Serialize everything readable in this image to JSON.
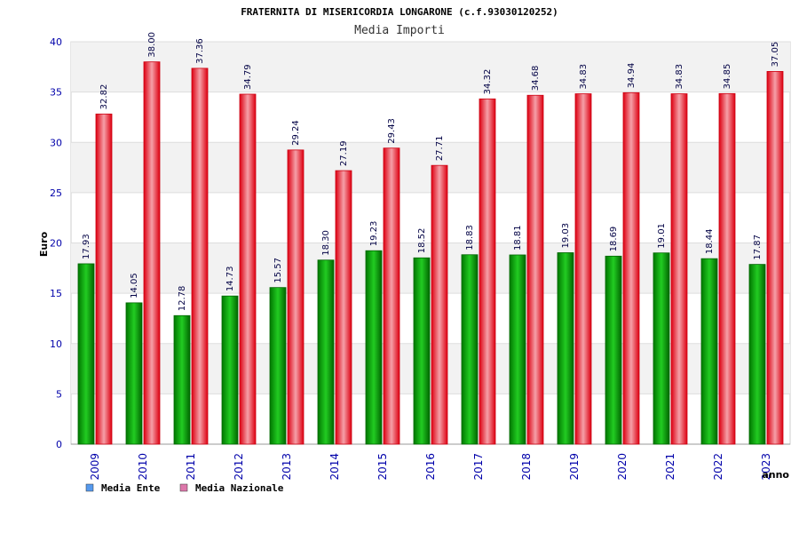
{
  "chart_data": {
    "type": "bar",
    "title": "FRATERNITA DI MISERICORDIA LONGARONE (c.f.93030120252)",
    "subtitle": "Media Importi",
    "xlabel": "anno",
    "ylabel": "Euro",
    "ylim": [
      0,
      40
    ],
    "yticks": [
      "0",
      "5",
      "10",
      "15",
      "20",
      "25",
      "30",
      "35",
      "40"
    ],
    "grid": true,
    "legend_position": "bottom-left",
    "categories": [
      "2009",
      "2010",
      "2011",
      "2012",
      "2013",
      "2014",
      "2015",
      "2016",
      "2017",
      "2018",
      "2019",
      "2020",
      "2021",
      "2022",
      "2023"
    ],
    "series": [
      {
        "name": "Media Ente",
        "values": [
          17.93,
          14.05,
          12.78,
          14.73,
          15.57,
          18.3,
          19.23,
          18.52,
          18.83,
          18.81,
          19.03,
          18.69,
          19.01,
          18.44,
          17.87
        ],
        "labels": [
          "17.93",
          "14.05",
          "12.78",
          "14.73",
          "15.57",
          "18.30",
          "19.23",
          "18.52",
          "18.83",
          "18.81",
          "19.03",
          "18.69",
          "19.01",
          "18.44",
          "17.87"
        ],
        "color": "#00aa00",
        "legend_color": "#5599ee"
      },
      {
        "name": "Media Nazionale",
        "values": [
          32.82,
          38.0,
          37.36,
          34.79,
          29.24,
          27.19,
          29.43,
          27.71,
          34.32,
          34.68,
          34.83,
          34.94,
          34.83,
          34.85,
          37.05
        ],
        "labels": [
          "32.82",
          "38.00",
          "37.36",
          "34.79",
          "29.24",
          "27.19",
          "29.43",
          "27.71",
          "34.32",
          "34.68",
          "34.83",
          "34.94",
          "34.83",
          "34.85",
          "37.05"
        ],
        "color": "#ee2233",
        "legend_color": "#dd77aa"
      }
    ]
  }
}
